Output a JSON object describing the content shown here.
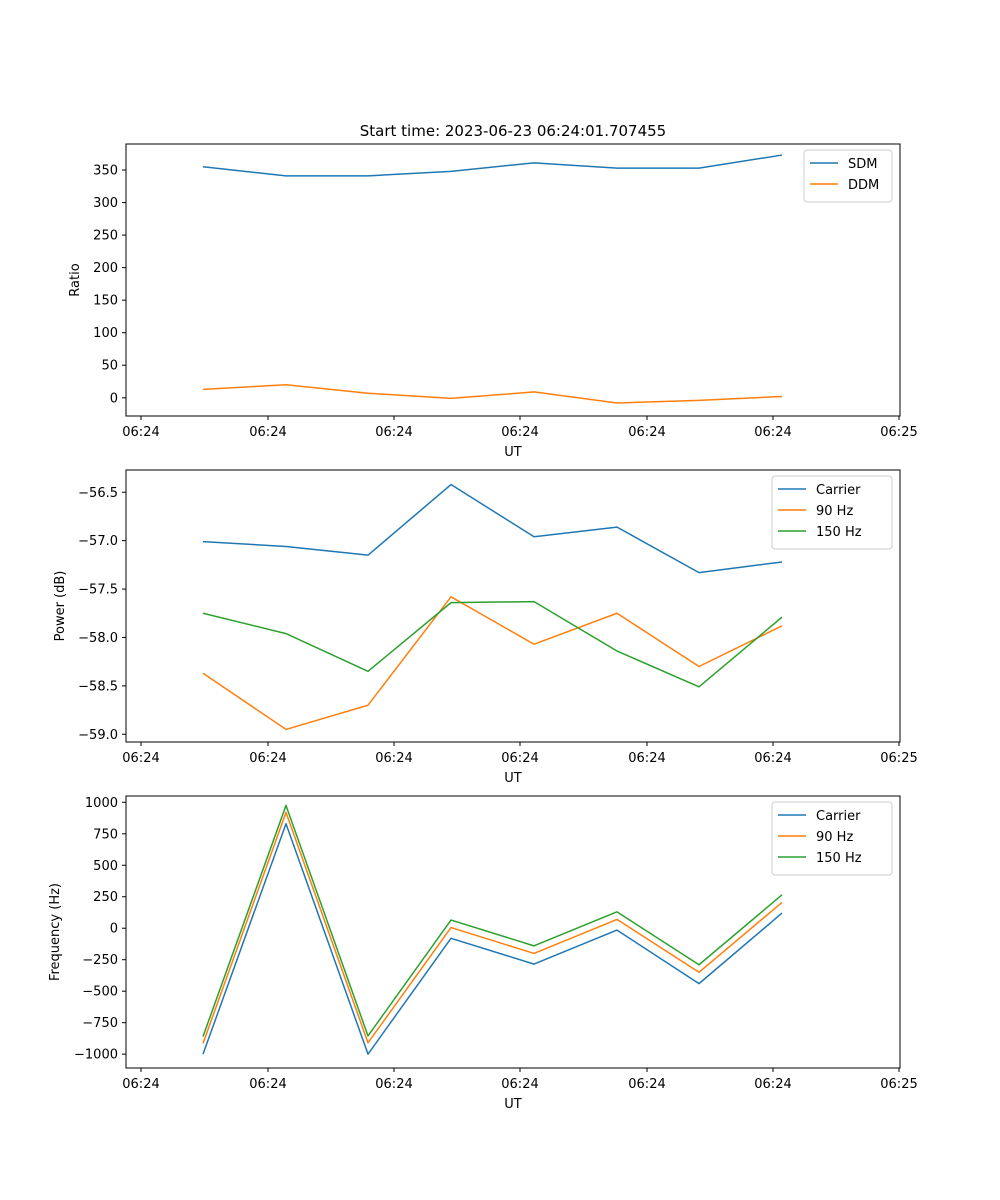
{
  "chart_data": [
    {
      "type": "line",
      "title": "Start time: 2023-06-23 06:24:01.707455",
      "xlabel": "UT",
      "ylabel": "Ratio",
      "xticks": [
        "06:24",
        "06:24",
        "06:24",
        "06:24",
        "06:24",
        "06:24",
        "06:24"
      ],
      "xticks_end": "06:25",
      "yticks": [
        0,
        50,
        100,
        150,
        200,
        250,
        300,
        350
      ],
      "ylim": [
        -28,
        390
      ],
      "legend": "top-right",
      "grid": false,
      "series": [
        {
          "name": "SDM",
          "color": "#1f77b4",
          "values": [
            355,
            341,
            341,
            348,
            361,
            353,
            353,
            373
          ]
        },
        {
          "name": "DDM",
          "color": "#ff7f0e",
          "values": [
            13,
            20,
            7,
            -1,
            9,
            -8,
            -4,
            2
          ]
        }
      ]
    },
    {
      "type": "line",
      "title": "",
      "xlabel": "UT",
      "ylabel": "Power (dB)",
      "xticks": [
        "06:24",
        "06:24",
        "06:24",
        "06:24",
        "06:24",
        "06:24",
        "06:24"
      ],
      "xticks_end": "06:25",
      "yticks": [
        "−59.0",
        "−58.5",
        "−58.0",
        "−57.5",
        "−57.0",
        "−56.5"
      ],
      "yticks_values": [
        -59.0,
        -58.5,
        -58.0,
        -57.5,
        -57.0,
        -56.5
      ],
      "ylim": [
        -59.08,
        -56.27
      ],
      "legend": "top-right",
      "grid": false,
      "series": [
        {
          "name": "Carrier",
          "color": "#1f77b4",
          "values": [
            -57.01,
            -57.06,
            -57.15,
            -56.42,
            -56.96,
            -56.86,
            -57.33,
            -57.22
          ]
        },
        {
          "name": "90 Hz",
          "color": "#ff7f0e",
          "values": [
            -58.37,
            -58.95,
            -58.7,
            -57.58,
            -58.07,
            -57.75,
            -58.3,
            -57.88
          ]
        },
        {
          "name": "150 Hz",
          "color": "#2ca02c",
          "values": [
            -57.75,
            -57.96,
            -58.35,
            -57.64,
            -57.63,
            -58.14,
            -58.51,
            -57.79
          ]
        }
      ]
    },
    {
      "type": "line",
      "title": "",
      "xlabel": "UT",
      "ylabel": "Frequency (Hz)",
      "xticks": [
        "06:24",
        "06:24",
        "06:24",
        "06:24",
        "06:24",
        "06:24",
        "06:24"
      ],
      "xticks_end": "06:25",
      "yticks": [
        "−1000",
        "−750",
        "−500",
        "−250",
        "0",
        "250",
        "500",
        "750",
        "1000"
      ],
      "yticks_values": [
        -1000,
        -750,
        -500,
        -250,
        0,
        250,
        500,
        750,
        1000
      ],
      "ylim": [
        -1110,
        1050
      ],
      "legend": "top-right",
      "grid": false,
      "series": [
        {
          "name": "Carrier",
          "color": "#1f77b4",
          "values": [
            -1000,
            830,
            -1000,
            -80,
            -285,
            -15,
            -440,
            120
          ]
        },
        {
          "name": "90 Hz",
          "color": "#ff7f0e",
          "values": [
            -915,
            920,
            -910,
            5,
            -200,
            70,
            -350,
            205
          ]
        },
        {
          "name": "150 Hz",
          "color": "#2ca02c",
          "values": [
            -860,
            975,
            -855,
            65,
            -140,
            130,
            -290,
            265
          ]
        }
      ]
    }
  ]
}
